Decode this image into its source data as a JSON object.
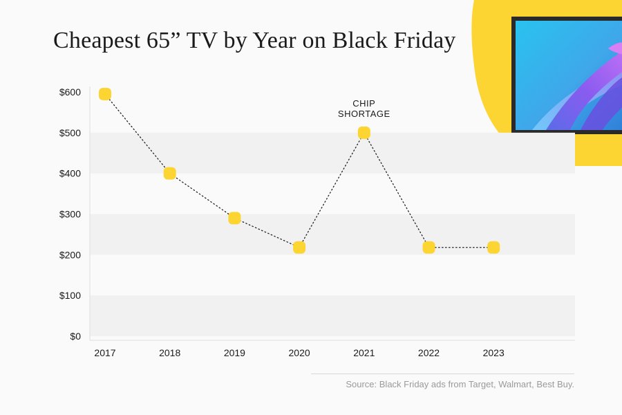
{
  "title": "Cheapest 65” TV by Year on Black Friday",
  "source": "Source: Black Friday ads from Target, Walmart, Best Buy.",
  "colors": {
    "marker": "#fcd533",
    "accent_blob": "#fcd533",
    "band": "#f1f1f1",
    "line": "#222222"
  },
  "chart_data": {
    "type": "line",
    "title": "Cheapest 65” TV by Year on Black Friday",
    "xlabel": "",
    "ylabel": "",
    "categories": [
      "2017",
      "2018",
      "2019",
      "2020",
      "2021",
      "2022",
      "2023"
    ],
    "series": [
      {
        "values": [
          595,
          400,
          290,
          218,
          500,
          218,
          218
        ]
      }
    ],
    "ylim": [
      0,
      600
    ],
    "yticks": [
      0,
      100,
      200,
      300,
      400,
      500,
      600
    ],
    "ytick_labels": [
      "$0",
      "$100",
      "$200",
      "$300",
      "$400",
      "$500",
      "$600"
    ],
    "line_style": "dotted",
    "marker": "rounded-square",
    "grid": "alternating horizontal bands",
    "annotations": [
      {
        "category": "2021",
        "lines": [
          "CHIP",
          "SHORTAGE"
        ]
      }
    ]
  },
  "decoration": {
    "illustration": "tv-icon"
  }
}
